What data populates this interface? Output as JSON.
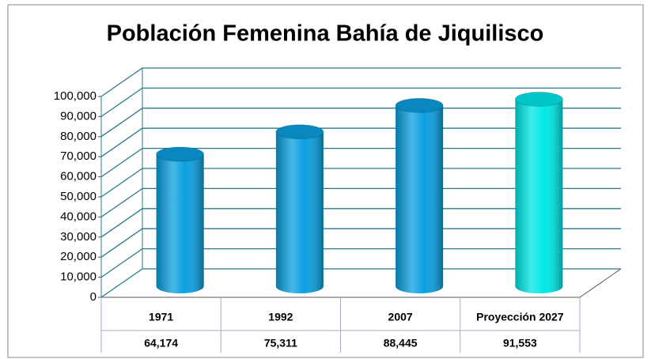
{
  "chart_data": {
    "type": "bar3d",
    "title": "Población Femenina Bahía de Jiquilisco",
    "categories": [
      "1971",
      "1992",
      "2007",
      "Proyección 2027"
    ],
    "values": [
      64174,
      75311,
      88445,
      91553
    ],
    "value_labels": [
      "64,174",
      "75,311",
      "88,445",
      "91,553"
    ],
    "colors": [
      "#0aa0e0",
      "#0aa0e0",
      "#0aa0e0",
      "#00e8e8"
    ],
    "ylim": [
      0,
      100000
    ],
    "yticks": [
      0,
      {
        "value": 10000,
        "label": "10,000"
      },
      {
        "value": 20000,
        "label": "20,000"
      },
      {
        "value": 30000,
        "label": "30,000"
      },
      {
        "value": 40000,
        "label": "40,000"
      },
      {
        "value": 50000,
        "label": "50,000"
      },
      {
        "value": 60000,
        "label": "60,000"
      },
      {
        "value": 70000,
        "label": "70,000"
      },
      {
        "value": 80000,
        "label": "80,000"
      },
      {
        "value": 90000,
        "label": "90,000"
      },
      {
        "value": 100000,
        "label": "100,000"
      }
    ],
    "grid": true
  }
}
